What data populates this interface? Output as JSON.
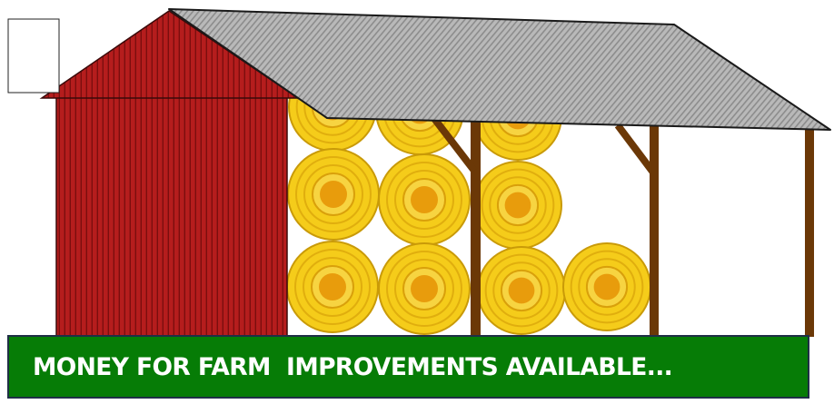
{
  "banner": {
    "text": "MONEY FOR FARM  IMPROVEMENTS AVAILABLE...",
    "background": "#067c06",
    "text_color": "#ffffff"
  },
  "colors": {
    "barn_red": "#b51d1d",
    "barn_outline": "#3b0a0a",
    "roof_gray": "#a7a7a7",
    "hay_yellow": "#f5cc1a",
    "hay_center": "#e89c0c",
    "post_brown": "#6b3807"
  }
}
